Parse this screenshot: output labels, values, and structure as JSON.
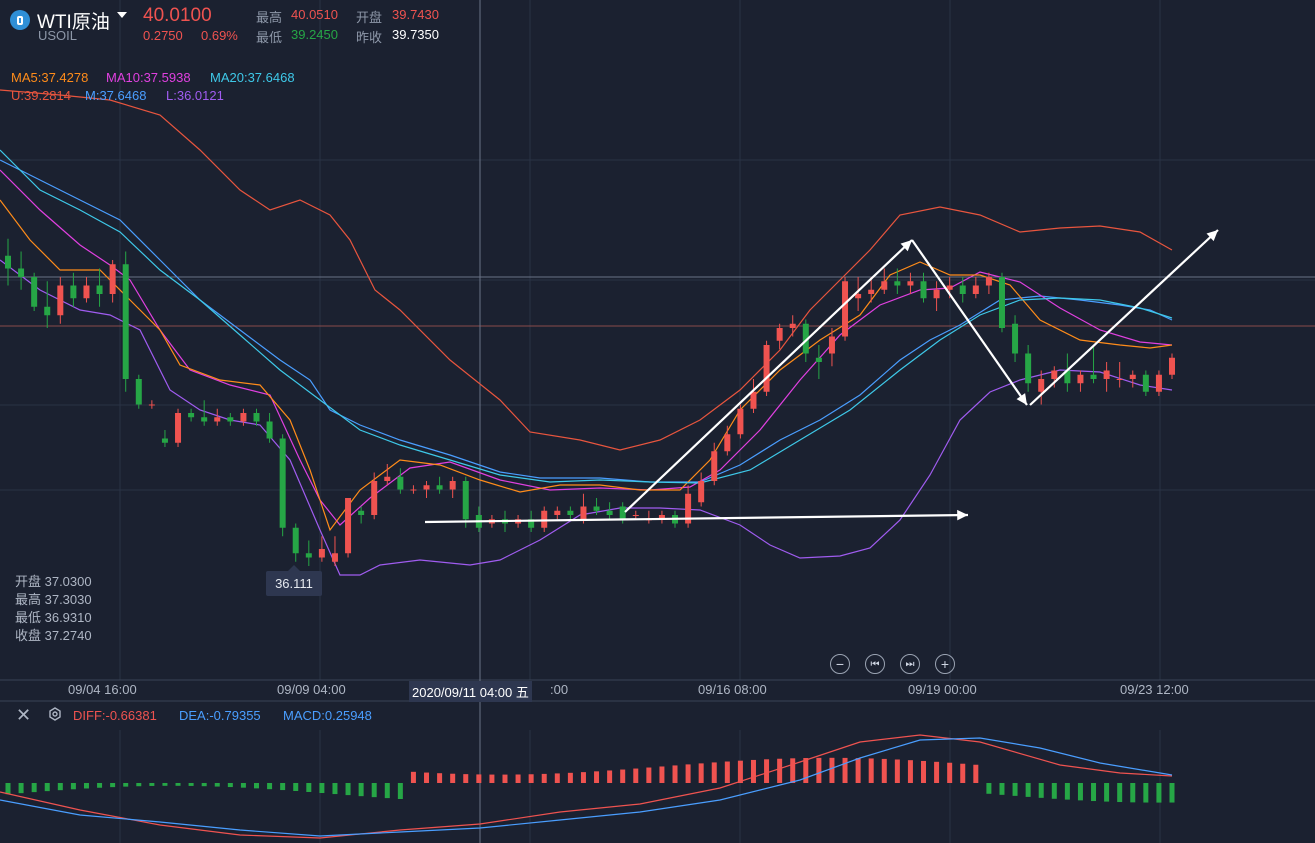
{
  "header": {
    "symbol": "WTI原油",
    "code": "USOIL",
    "price": "40.0100",
    "change": "0.2750",
    "change_pct": "0.69%",
    "stats": [
      {
        "label": "最高",
        "value": "40.0510",
        "color": "#ef5350"
      },
      {
        "label": "开盘",
        "value": "39.7430",
        "color": "#ef5350"
      },
      {
        "label": "最低",
        "value": "39.2450",
        "color": "#26a646"
      },
      {
        "label": "昨收",
        "value": "39.7350",
        "color": "#ffffff"
      }
    ]
  },
  "indicators": {
    "ma5": {
      "text": "MA5:37.4278",
      "color": "#ff8c1a"
    },
    "ma10": {
      "text": "MA10:37.5938",
      "color": "#e040e0"
    },
    "ma20": {
      "text": "MA20:37.6468",
      "color": "#3ec8e8"
    },
    "boll_u": {
      "text": "U:39.2814",
      "color": "#e8553e"
    },
    "boll_m": {
      "text": "M:37.6468",
      "color": "#4a9eff"
    },
    "boll_l": {
      "text": "L:36.0121",
      "color": "#a05cf0"
    }
  },
  "ohlc_panel": {
    "open": "开盘 37.0300",
    "high": "最高 37.3030",
    "low": "最低 36.9310",
    "close": "收盘 37.2740"
  },
  "low_marker": "36.111",
  "time_axis": {
    "labels": [
      "09/04 16:00",
      "09/09 04:00",
      "09/16 08:00",
      "09/19 00:00",
      "09/23 12:00"
    ],
    "crosshair_label": "2020/09/11 04:00 五",
    "crosshair_partial": ":00"
  },
  "nav_buttons": [
    {
      "name": "zoom-out-icon",
      "glyph": "−"
    },
    {
      "name": "jump-start-icon",
      "glyph": "⏮"
    },
    {
      "name": "jump-end-icon",
      "glyph": "⏭"
    },
    {
      "name": "zoom-in-icon",
      "glyph": "+"
    }
  ],
  "macd": {
    "diff": {
      "text": "DIFF:-0.66381",
      "color": "#ef5350"
    },
    "dea": {
      "text": "DEA:-0.79355",
      "color": "#4a9eff"
    },
    "macd": {
      "text": "MACD:0.25948",
      "color": "#4a9eff"
    }
  },
  "colors": {
    "up": "#ef5350",
    "down": "#26a646",
    "background": "#1b2130"
  },
  "chart_data": {
    "type": "candlestick",
    "title": "",
    "ylim": [
      35.5,
      41.5
    ],
    "candles_ohlc": [
      [
        39.55,
        39.75,
        39.2,
        39.4
      ],
      [
        39.4,
        39.6,
        39.15,
        39.3
      ],
      [
        39.3,
        39.35,
        38.9,
        38.95
      ],
      [
        38.95,
        39.25,
        38.7,
        38.85
      ],
      [
        38.85,
        39.3,
        38.75,
        39.2
      ],
      [
        39.2,
        39.35,
        38.95,
        39.05
      ],
      [
        39.05,
        39.3,
        39.0,
        39.2
      ],
      [
        39.2,
        39.4,
        38.95,
        39.1
      ],
      [
        39.1,
        39.5,
        39.0,
        39.45
      ],
      [
        39.45,
        39.6,
        37.95,
        38.1
      ],
      [
        38.1,
        38.15,
        37.75,
        37.8
      ],
      [
        37.8,
        37.85,
        37.75,
        37.8
      ],
      [
        37.4,
        37.5,
        37.3,
        37.35
      ],
      [
        37.35,
        37.75,
        37.3,
        37.7
      ],
      [
        37.7,
        37.75,
        37.6,
        37.65
      ],
      [
        37.65,
        37.85,
        37.55,
        37.6
      ],
      [
        37.6,
        37.75,
        37.55,
        37.65
      ],
      [
        37.65,
        37.7,
        37.55,
        37.6
      ],
      [
        37.6,
        37.75,
        37.55,
        37.7
      ],
      [
        37.7,
        37.75,
        37.55,
        37.6
      ],
      [
        37.6,
        37.7,
        37.35,
        37.4
      ],
      [
        37.4,
        37.45,
        36.25,
        36.35
      ],
      [
        36.35,
        36.4,
        35.95,
        36.05
      ],
      [
        36.05,
        36.2,
        35.9,
        36.0
      ],
      [
        36.0,
        36.25,
        35.95,
        36.1
      ],
      [
        35.95,
        36.25,
        35.9,
        36.05
      ],
      [
        36.05,
        36.7,
        36.0,
        36.7
      ],
      [
        36.55,
        36.6,
        36.4,
        36.5
      ],
      [
        36.5,
        37.0,
        36.45,
        36.9
      ],
      [
        36.9,
        37.1,
        36.85,
        36.95
      ],
      [
        36.95,
        37.05,
        36.75,
        36.8
      ],
      [
        36.8,
        36.85,
        36.75,
        36.8
      ],
      [
        36.8,
        36.9,
        36.7,
        36.85
      ],
      [
        36.85,
        36.95,
        36.75,
        36.8
      ],
      [
        36.8,
        36.95,
        36.7,
        36.9
      ],
      [
        36.9,
        36.95,
        36.35,
        36.45
      ],
      [
        36.5,
        36.6,
        36.3,
        36.35
      ],
      [
        36.4,
        36.5,
        36.35,
        36.45
      ],
      [
        36.45,
        36.55,
        36.3,
        36.4
      ],
      [
        36.4,
        36.5,
        36.35,
        36.45
      ],
      [
        36.45,
        36.55,
        36.3,
        36.35
      ],
      [
        36.35,
        36.6,
        36.3,
        36.55
      ],
      [
        36.5,
        36.6,
        36.45,
        36.55
      ],
      [
        36.55,
        36.6,
        36.45,
        36.5
      ],
      [
        36.45,
        36.75,
        36.4,
        36.6
      ],
      [
        36.6,
        36.7,
        36.5,
        36.55
      ],
      [
        36.55,
        36.65,
        36.45,
        36.5
      ],
      [
        36.6,
        36.65,
        36.4,
        36.45
      ],
      [
        36.5,
        36.55,
        36.45,
        36.5
      ],
      [
        36.45,
        36.55,
        36.4,
        36.45
      ],
      [
        36.45,
        36.55,
        36.4,
        36.5
      ],
      [
        36.5,
        36.55,
        36.35,
        36.4
      ],
      [
        36.4,
        36.85,
        36.35,
        36.75
      ],
      [
        36.65,
        37.0,
        36.6,
        36.9
      ],
      [
        36.9,
        37.35,
        36.85,
        37.25
      ],
      [
        37.25,
        37.55,
        37.2,
        37.45
      ],
      [
        37.45,
        37.8,
        37.4,
        37.75
      ],
      [
        37.75,
        38.1,
        37.7,
        37.95
      ],
      [
        37.95,
        38.55,
        37.9,
        38.5
      ],
      [
        38.55,
        38.75,
        38.45,
        38.7
      ],
      [
        38.7,
        38.85,
        38.6,
        38.75
      ],
      [
        38.75,
        38.8,
        38.3,
        38.4
      ],
      [
        38.35,
        38.5,
        38.1,
        38.3
      ],
      [
        38.4,
        38.7,
        38.25,
        38.6
      ],
      [
        38.6,
        39.3,
        38.55,
        39.25
      ],
      [
        39.05,
        39.3,
        38.9,
        39.1
      ],
      [
        39.1,
        39.3,
        39.0,
        39.15
      ],
      [
        39.15,
        39.4,
        39.1,
        39.25
      ],
      [
        39.25,
        39.4,
        39.1,
        39.2
      ],
      [
        39.2,
        39.35,
        39.1,
        39.25
      ],
      [
        39.25,
        39.35,
        39.0,
        39.05
      ],
      [
        39.05,
        39.25,
        38.9,
        39.15
      ],
      [
        39.15,
        39.3,
        39.05,
        39.2
      ],
      [
        39.2,
        39.3,
        39.0,
        39.1
      ],
      [
        39.1,
        39.3,
        39.05,
        39.2
      ],
      [
        39.2,
        39.35,
        39.1,
        39.3
      ],
      [
        39.3,
        39.35,
        38.65,
        38.7
      ],
      [
        38.75,
        38.85,
        38.3,
        38.4
      ],
      [
        38.4,
        38.5,
        37.95,
        38.05
      ],
      [
        37.95,
        38.2,
        37.8,
        38.1
      ],
      [
        38.1,
        38.25,
        38.0,
        38.2
      ],
      [
        38.2,
        38.4,
        37.95,
        38.05
      ],
      [
        38.05,
        38.2,
        37.95,
        38.15
      ],
      [
        38.15,
        38.5,
        38.05,
        38.1
      ],
      [
        38.1,
        38.3,
        37.95,
        38.2
      ],
      [
        38.1,
        38.3,
        38.0,
        38.1
      ],
      [
        38.1,
        38.2,
        38.0,
        38.15
      ],
      [
        38.15,
        38.2,
        37.9,
        37.95
      ],
      [
        37.95,
        38.2,
        37.9,
        38.15
      ],
      [
        38.15,
        38.4,
        38.1,
        38.35
      ]
    ]
  }
}
